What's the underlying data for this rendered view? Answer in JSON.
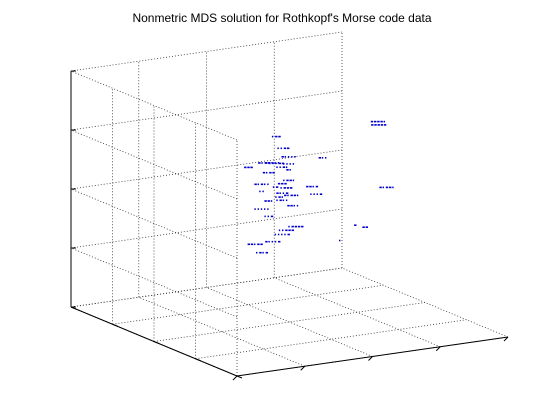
{
  "chart_data": {
    "type": "scatter",
    "title": "Nonmetric MDS solution for Rothkopf's Morse code data",
    "grid": true,
    "tick_labels": "none",
    "marker_color": "#0000cc",
    "series": [
      {
        "points": [
          {
            "label": "• ——",
            "x": 0.04,
            "y": 0.22,
            "z": 0.5
          },
          {
            "label": "— ——",
            "x": -0.3,
            "y": 0.0,
            "z": 0.36
          },
          {
            "label": "• • ——",
            "x": 0.05,
            "y": 0.15,
            "z": 0.42
          },
          {
            "label": "— • • • •",
            "x": 0.0,
            "y": 0.0,
            "z": 0.4
          },
          {
            "label": "• • • •",
            "x": 0.0,
            "y": 0.0,
            "z": 0.34
          },
          {
            "label": "— • — —",
            "x": -0.15,
            "y": 0.0,
            "z": 0.29
          },
          {
            "label": "• • — •",
            "x": -0.05,
            "y": 0.0,
            "z": 0.32
          },
          {
            "label": "— • •",
            "x": 0.25,
            "y": 0.0,
            "z": 0.35
          },
          {
            "label": "• • • — —",
            "x": 0.0,
            "y": 0.15,
            "z": 0.3
          },
          {
            "label": "— •",
            "x": 0.0,
            "y": 0.0,
            "z": 0.29
          },
          {
            "label": "— — — • •",
            "x": 0.0,
            "y": 0.2,
            "z": 0.29
          },
          {
            "label": "— • — •",
            "x": 0.0,
            "y": 0.3,
            "z": 0.26
          },
          {
            "label": "• —",
            "x": -0.1,
            "y": 0.0,
            "z": 0.16
          },
          {
            "label": "— • — • •",
            "x": -0.2,
            "y": 0.0,
            "z": 0.2
          },
          {
            "label": "• •",
            "x": -0.2,
            "y": 0.0,
            "z": 0.14
          },
          {
            "label": "— — —",
            "x": -0.05,
            "y": 0.0,
            "z": 0.18
          },
          {
            "label": "• — — —",
            "x": -0.02,
            "y": 0.0,
            "z": 0.14
          },
          {
            "label": "— • • —",
            "x": -0.05,
            "y": 0.0,
            "z": 0.1
          },
          {
            "label": "• — •",
            "x": -0.07,
            "y": 0.0,
            "z": 0.07
          },
          {
            "label": "— — •",
            "x": -0.15,
            "y": 0.0,
            "z": 0.05
          },
          {
            "label": "• — • •",
            "x": -0.05,
            "y": 0.0,
            "z": 0.04
          },
          {
            "label": "• • • • •",
            "x": -0.2,
            "y": 0.0,
            "z": -0.01
          },
          {
            "label": "— — • •",
            "x": 0.0,
            "y": -0.05,
            "z": 0.0
          },
          {
            "label": "— • — — •",
            "x": 0.05,
            "y": 0.05,
            "z": 0.05
          },
          {
            "label": "• • —",
            "x": -0.15,
            "y": 0.0,
            "z": -0.08
          },
          {
            "label": "• — — •",
            "x": 0.0,
            "y": 0.0,
            "z": 0.2
          },
          {
            "label": "— — • —",
            "x": 0.2,
            "y": 0.05,
            "z": 0.1
          },
          {
            "label": "• • • —",
            "x": 0.2,
            "y": 0.0,
            "z": 0.05
          },
          {
            "label": "— — — — —",
            "x": 0.6,
            "y": -0.1,
            "z": 0.6
          },
          {
            "label": "— — — — •",
            "x": 0.72,
            "y": 0.1,
            "z": 0.55
          },
          {
            "label": "— • — — •",
            "x": 0.6,
            "y": -0.2,
            "z": 0.1
          },
          {
            "label": "— —",
            "x": 0.5,
            "y": -0.1,
            "z": -0.25
          },
          {
            "label": "—",
            "x": 0.55,
            "y": 0.1,
            "z": -0.3
          },
          {
            "label": "•",
            "x": 0.5,
            "y": 0.2,
            "z": -0.45
          },
          {
            "label": "• — — — —",
            "x": 0.05,
            "y": 0.0,
            "z": -0.2
          },
          {
            "label": "• • — — —",
            "x": -0.02,
            "y": 0.0,
            "z": -0.22
          },
          {
            "label": "• • • • —",
            "x": -0.05,
            "y": 0.0,
            "z": -0.25
          },
          {
            "label": "— • • • —",
            "x": -0.12,
            "y": 0.0,
            "z": -0.3
          },
          {
            "label": "• — • —",
            "x": -0.2,
            "y": 0.0,
            "z": -0.38
          },
          {
            "label": "— — • — —",
            "x": -0.25,
            "y": 0.0,
            "z": -0.3
          }
        ]
      }
    ]
  }
}
